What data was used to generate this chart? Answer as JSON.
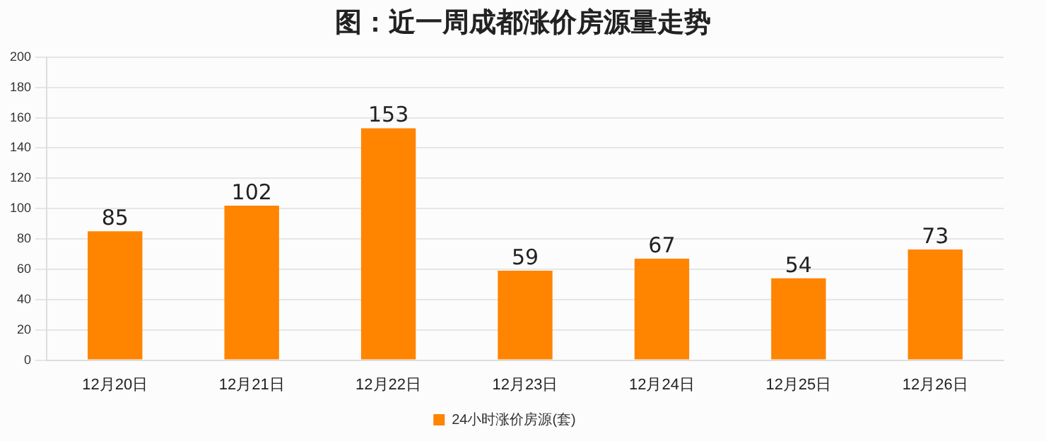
{
  "chart_data": {
    "type": "bar",
    "title": "图：近一周成都涨价房源量走势",
    "categories": [
      "12月20日",
      "12月21日",
      "12月22日",
      "12月23日",
      "12月24日",
      "12月25日",
      "12月26日"
    ],
    "series": [
      {
        "name": "24小时涨价房源(套)",
        "color": "#ff8400",
        "values": [
          85,
          102,
          153,
          59,
          67,
          54,
          73
        ]
      }
    ],
    "ylim": [
      0,
      200
    ],
    "yticks": [
      0,
      20,
      40,
      60,
      80,
      100,
      120,
      140,
      160,
      180,
      200
    ],
    "grid": "y",
    "legend": "bottom",
    "data_labels": true
  }
}
